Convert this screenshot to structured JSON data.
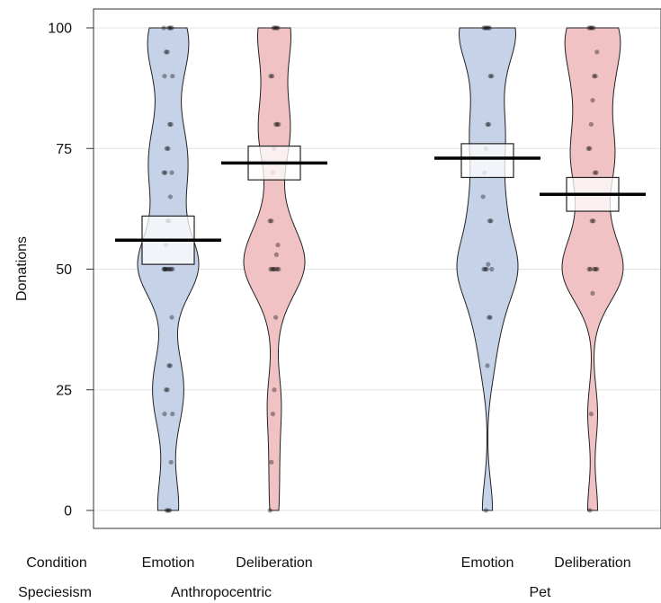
{
  "chart_data": {
    "type": "violin",
    "title": "",
    "xlabel": "",
    "ylabel": "Donations",
    "ylim": [
      0,
      100
    ],
    "yticks": [
      0,
      25,
      50,
      75,
      100
    ],
    "grid": true,
    "row_labels": {
      "condition": "Condition",
      "speciesism": "Speciesism"
    },
    "groups": [
      {
        "speciesism": "Anthropocentric",
        "condition": "Emotion",
        "color": "#c5d2e8",
        "mean": 56,
        "ci": [
          51,
          61
        ],
        "points": [
          100,
          100,
          100,
          100,
          95,
          95,
          90,
          90,
          80,
          80,
          75,
          75,
          70,
          70,
          70,
          65,
          60,
          60,
          55,
          50,
          50,
          50,
          50,
          50,
          50,
          50,
          50,
          40,
          30,
          30,
          25,
          25,
          20,
          20,
          10,
          0,
          0,
          0
        ]
      },
      {
        "speciesism": "Anthropocentric",
        "condition": "Deliberation",
        "color": "#f0c2c4",
        "mean": 72,
        "ci": [
          68.5,
          75.5
        ],
        "points": [
          100,
          100,
          100,
          100,
          90,
          90,
          80,
          80,
          80,
          75,
          70,
          60,
          60,
          55,
          53,
          50,
          50,
          50,
          50,
          50,
          50,
          40,
          25,
          20,
          10,
          0
        ]
      },
      {
        "speciesism": "Pet",
        "condition": "Emotion",
        "color": "#c5d2e8",
        "mean": 73,
        "ci": [
          69,
          76
        ],
        "points": [
          100,
          100,
          100,
          100,
          100,
          90,
          90,
          80,
          80,
          75,
          70,
          65,
          60,
          60,
          51,
          50,
          50,
          50,
          50,
          40,
          40,
          30,
          0
        ]
      },
      {
        "speciesism": "Pet",
        "condition": "Deliberation",
        "color": "#f0c2c4",
        "mean": 65.5,
        "ci": [
          62,
          69
        ],
        "points": [
          100,
          100,
          100,
          100,
          95,
          90,
          90,
          85,
          80,
          75,
          75,
          70,
          70,
          60,
          60,
          50,
          50,
          50,
          50,
          50,
          45,
          20,
          0
        ]
      }
    ]
  }
}
